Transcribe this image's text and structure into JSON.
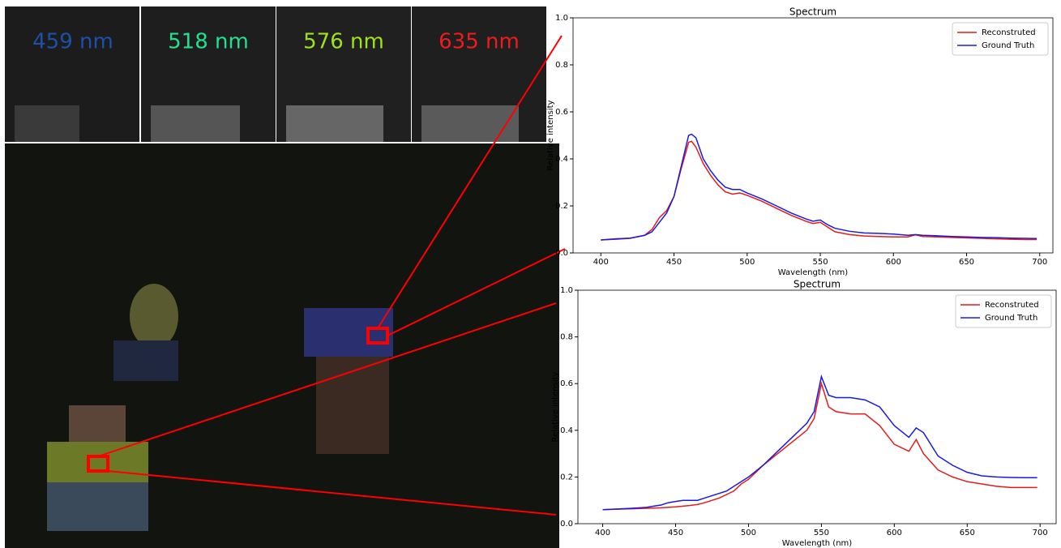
{
  "panels": {
    "labels": [
      "459 nm",
      "518 nm",
      "576 nm",
      "635 nm"
    ]
  },
  "chart_data": [
    {
      "type": "line",
      "title": "Spectrum",
      "x_label": "Wavelength (nm)",
      "y_label": "Relative intensity",
      "x": [
        400,
        410,
        420,
        430,
        435,
        440,
        445,
        450,
        455,
        460,
        462,
        465,
        470,
        475,
        480,
        485,
        490,
        495,
        500,
        510,
        520,
        530,
        540,
        545,
        550,
        555,
        560,
        570,
        580,
        590,
        600,
        610,
        615,
        620,
        630,
        640,
        650,
        660,
        670,
        680,
        690,
        698
      ],
      "series": [
        {
          "name": "Reconstruted",
          "color": "#e41a1c",
          "values": [
            0.055,
            0.058,
            0.062,
            0.075,
            0.1,
            0.15,
            0.18,
            0.24,
            0.36,
            0.47,
            0.475,
            0.45,
            0.38,
            0.33,
            0.29,
            0.26,
            0.25,
            0.255,
            0.245,
            0.22,
            0.19,
            0.16,
            0.135,
            0.125,
            0.13,
            0.11,
            0.09,
            0.078,
            0.072,
            0.07,
            0.068,
            0.068,
            0.077,
            0.07,
            0.068,
            0.066,
            0.064,
            0.062,
            0.06,
            0.058,
            0.057,
            0.057
          ]
        },
        {
          "name": "Ground Truth",
          "color": "#1a1ae0",
          "values": [
            0.055,
            0.06,
            0.063,
            0.075,
            0.09,
            0.13,
            0.17,
            0.24,
            0.37,
            0.5,
            0.505,
            0.49,
            0.4,
            0.35,
            0.31,
            0.28,
            0.27,
            0.27,
            0.255,
            0.23,
            0.2,
            0.17,
            0.145,
            0.135,
            0.14,
            0.12,
            0.105,
            0.092,
            0.085,
            0.083,
            0.08,
            0.075,
            0.078,
            0.075,
            0.073,
            0.07,
            0.068,
            0.066,
            0.065,
            0.063,
            0.062,
            0.061
          ]
        }
      ],
      "xlim": [
        381,
        709
      ],
      "xticks": [
        400,
        450,
        500,
        550,
        600,
        650,
        700
      ],
      "ylim": [
        0,
        1
      ],
      "yticks": [
        {
          "value": 0,
          "label": "0.0"
        },
        0.2,
        0.4,
        0.6,
        0.8,
        {
          "value": 1,
          "label": "1.0"
        }
      ],
      "legend": "upper right"
    },
    {
      "type": "line",
      "title": "Spectrum",
      "x_label": "Wavelength (nm)",
      "y_label": "Relative intensity",
      "x": [
        400,
        410,
        420,
        430,
        435,
        440,
        445,
        450,
        455,
        460,
        462,
        465,
        470,
        475,
        480,
        485,
        490,
        495,
        500,
        510,
        520,
        530,
        540,
        545,
        550,
        555,
        560,
        570,
        580,
        590,
        600,
        610,
        615,
        620,
        630,
        640,
        650,
        660,
        670,
        680,
        690,
        698
      ],
      "series": [
        {
          "name": "Reconstruted",
          "color": "#e41a1c",
          "values": [
            0.06,
            0.062,
            0.064,
            0.066,
            0.067,
            0.068,
            0.07,
            0.072,
            0.075,
            0.078,
            0.08,
            0.082,
            0.09,
            0.1,
            0.11,
            0.125,
            0.14,
            0.17,
            0.19,
            0.25,
            0.3,
            0.35,
            0.4,
            0.45,
            0.6,
            0.5,
            0.48,
            0.47,
            0.47,
            0.42,
            0.34,
            0.31,
            0.36,
            0.3,
            0.23,
            0.2,
            0.18,
            0.17,
            0.16,
            0.155,
            0.155,
            0.155
          ]
        },
        {
          "name": "Ground Truth",
          "color": "#1a1ae0",
          "values": [
            0.06,
            0.063,
            0.066,
            0.07,
            0.075,
            0.08,
            0.09,
            0.095,
            0.1,
            0.1,
            0.1,
            0.1,
            0.11,
            0.12,
            0.13,
            0.14,
            0.16,
            0.18,
            0.2,
            0.25,
            0.31,
            0.37,
            0.43,
            0.48,
            0.63,
            0.55,
            0.54,
            0.54,
            0.53,
            0.5,
            0.42,
            0.37,
            0.41,
            0.39,
            0.29,
            0.25,
            0.22,
            0.205,
            0.2,
            0.198,
            0.197,
            0.197
          ]
        }
      ],
      "xlim": [
        383,
        711
      ],
      "xticks": [
        400,
        450,
        500,
        550,
        600,
        650,
        700
      ],
      "ylim": [
        0,
        1
      ],
      "yticks": [
        {
          "value": 0,
          "label": "0.0"
        },
        0.2,
        0.4,
        0.6,
        0.8,
        {
          "value": 1,
          "label": "1.0"
        }
      ],
      "legend": "upper right"
    }
  ]
}
